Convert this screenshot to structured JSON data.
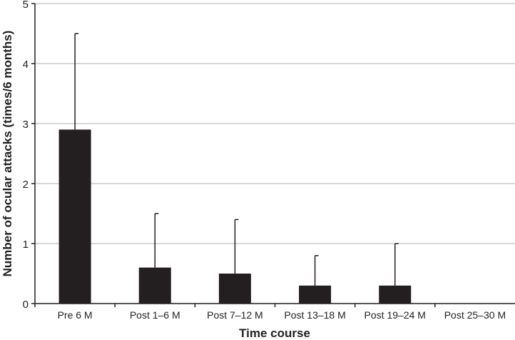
{
  "chart_data": {
    "type": "bar",
    "title": "",
    "xlabel": "Time course",
    "ylabel": "Number of ocular attacks (times/6 months)",
    "categories": [
      "Pre 6 M",
      "Post 1–6 M",
      "Post 7–12 M",
      "Post 13–18 M",
      "Post 19–24 M",
      "Post 25–30 M"
    ],
    "values": [
      2.9,
      0.6,
      0.5,
      0.3,
      0.3,
      0
    ],
    "error_upper": [
      4.5,
      1.5,
      1.4,
      0.8,
      1.0,
      0
    ],
    "ylim": [
      0,
      5
    ],
    "yticks": [
      0,
      1,
      2,
      3,
      4,
      5
    ],
    "grid": true,
    "colors": {
      "bar": "#231f20",
      "grid": "#b0b0b0"
    }
  }
}
